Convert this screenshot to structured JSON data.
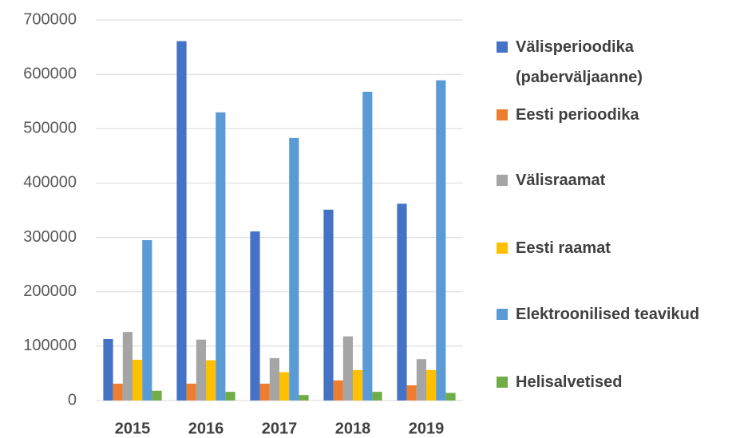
{
  "chart_data": {
    "type": "bar",
    "categories": [
      "2015",
      "2016",
      "2017",
      "2018",
      "2019"
    ],
    "series": [
      {
        "name": "Välisperioodika (paberväljaanne)",
        "color": "#4472c4",
        "values": [
          113000,
          661000,
          311000,
          351000,
          362000
        ]
      },
      {
        "name": "Eesti perioodika",
        "color": "#ed7d31",
        "values": [
          31000,
          31000,
          31000,
          37000,
          28000
        ]
      },
      {
        "name": "Välisraamat",
        "color": "#a5a5a5",
        "values": [
          126000,
          112000,
          78000,
          118000,
          76000
        ]
      },
      {
        "name": "Eesti raamat",
        "color": "#ffc000",
        "values": [
          75000,
          74000,
          52000,
          56000,
          56000
        ]
      },
      {
        "name": "Elektroonilised teavikud",
        "color": "#5b9bd5",
        "values": [
          295000,
          530000,
          483000,
          568000,
          589000
        ]
      },
      {
        "name": "Helisalvetised",
        "color": "#70ad47",
        "values": [
          18000,
          16000,
          10000,
          16000,
          14000
        ]
      }
    ],
    "ylim": [
      0,
      700000
    ],
    "yticks": [
      0,
      100000,
      200000,
      300000,
      400000,
      500000,
      600000,
      700000
    ],
    "grid": true,
    "legend": "right"
  }
}
